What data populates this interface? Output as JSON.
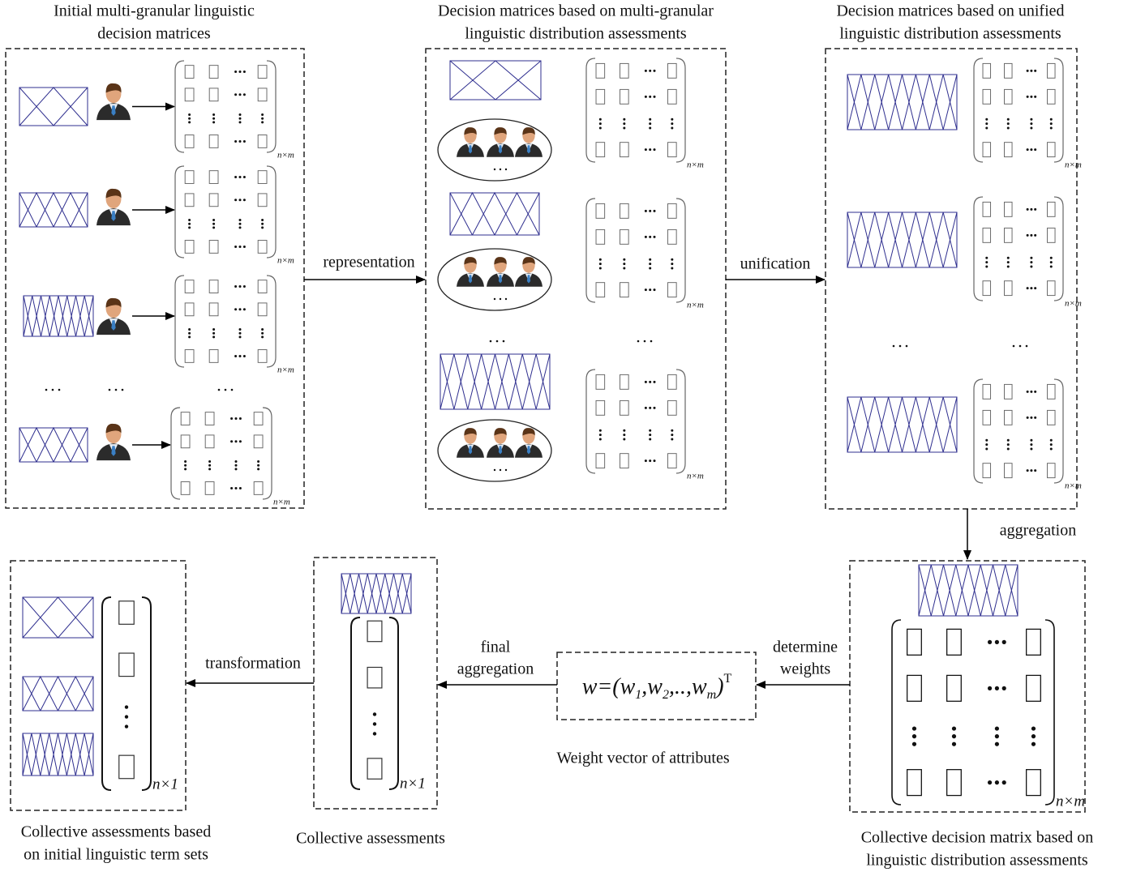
{
  "panels": [
    {
      "title": [
        "Initial multi-granular linguistic",
        "decision matrices"
      ]
    },
    {
      "title": [
        "Decision matrices based on multi-granular",
        "linguistic distribution assessments"
      ]
    },
    {
      "title": [
        "Decision matrices based on unified",
        "linguistic distribution assessments"
      ]
    }
  ],
  "edges": [
    {
      "label": [
        "representation"
      ]
    },
    {
      "label": [
        "unification"
      ]
    },
    {
      "label": [
        "aggregation"
      ]
    },
    {
      "label": [
        "determine",
        "weights"
      ]
    },
    {
      "label": [
        "final",
        "aggregation"
      ]
    },
    {
      "label": [
        "transformation"
      ]
    }
  ],
  "captions": [
    [
      "Collective decision matrix based on",
      "linguistic distribution assessments"
    ],
    [
      "Weight vector of attributes"
    ],
    [
      "Collective assessments"
    ],
    [
      "Collective assessments based",
      "on initial linguistic term sets"
    ]
  ],
  "formula": [
    "w=(w",
    "1",
    ",w",
    "2",
    ",..,w",
    "m",
    ")",
    "T"
  ],
  "subscripts": {
    "matrix": "n×m",
    "vector": "n×1"
  }
}
